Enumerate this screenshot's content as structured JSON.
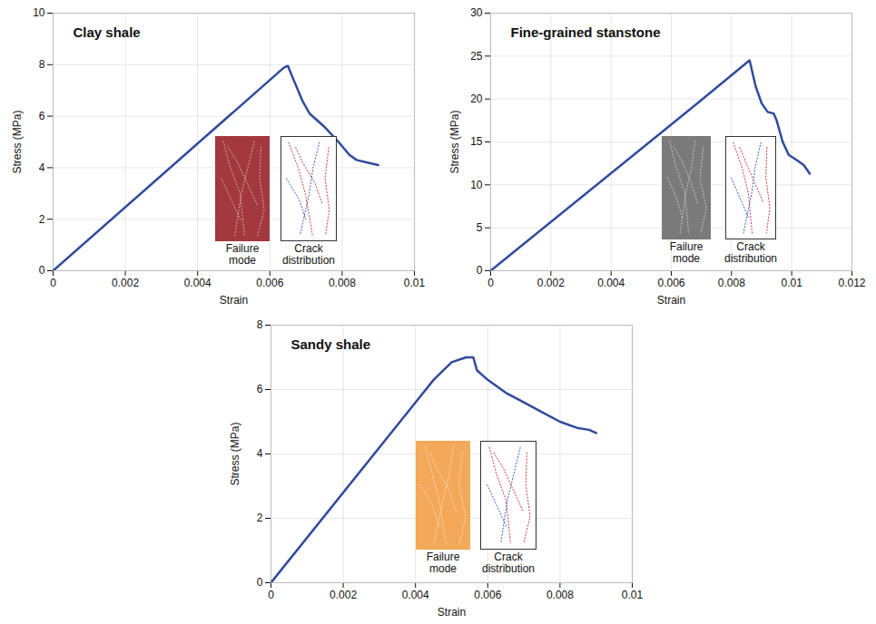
{
  "chart_data": [
    {
      "type": "line",
      "title": "Clay shale",
      "x_label": "Strain",
      "y_label": "Stress (MPa)",
      "x": [
        0,
        0.0064,
        0.0065,
        0.0066,
        0.0069,
        0.0071,
        0.0075,
        0.0079,
        0.0082,
        0.0084,
        0.0087,
        0.009
      ],
      "values": [
        0,
        7.9,
        7.95,
        7.6,
        6.6,
        6.1,
        5.6,
        5.0,
        4.5,
        4.3,
        4.2,
        4.1
      ],
      "color": "#2f4b9b",
      "xlim": [
        0,
        0.01
      ],
      "xticks": [
        0,
        0.002,
        0.004,
        0.006,
        0.008,
        0.01
      ],
      "ylim": [
        0,
        10
      ],
      "yticks": [
        0,
        2,
        4,
        6,
        8,
        10
      ],
      "grid": true,
      "annotations": [
        "Failure mode",
        "Crack distribution"
      ]
    },
    {
      "type": "line",
      "title": "Fine-grained stanstone",
      "x_label": "Strain",
      "y_label": "Stress (MPa)",
      "x": [
        0,
        0.0069,
        0.0086,
        0.0088,
        0.009,
        0.0092,
        0.0094,
        0.0095,
        0.0097,
        0.0099,
        0.0102,
        0.0104,
        0.0106
      ],
      "values": [
        0,
        19.6,
        24.5,
        21.5,
        19.5,
        18.5,
        18.3,
        17.5,
        15.0,
        13.5,
        12.8,
        12.3,
        11.3
      ],
      "color": "#2f4b9b",
      "xlim": [
        0,
        0.012
      ],
      "xticks": [
        0,
        0.002,
        0.004,
        0.006,
        0.008,
        0.01,
        0.012
      ],
      "ylim": [
        0,
        30
      ],
      "yticks": [
        0,
        5,
        10,
        15,
        20,
        25,
        30
      ],
      "grid": true,
      "annotations": [
        "Failure mode",
        "Crack distribution"
      ]
    },
    {
      "type": "line",
      "title": "Sandy shale",
      "x_label": "Strain",
      "y_label": "Stress (MPa)",
      "x": [
        0,
        0.004,
        0.0045,
        0.005,
        0.0054,
        0.0056,
        0.0057,
        0.006,
        0.0065,
        0.007,
        0.0075,
        0.008,
        0.0085,
        0.0088,
        0.009
      ],
      "values": [
        0,
        5.6,
        6.3,
        6.85,
        7.0,
        7.0,
        6.6,
        6.3,
        5.9,
        5.6,
        5.3,
        5.0,
        4.8,
        4.75,
        4.65
      ],
      "color": "#2f4b9b",
      "xlim": [
        0,
        0.01
      ],
      "xticks": [
        0,
        0.002,
        0.004,
        0.006,
        0.008,
        0.01
      ],
      "ylim": [
        0,
        8
      ],
      "yticks": [
        0,
        2,
        4,
        6,
        8
      ],
      "grid": true,
      "annotations": [
        "Failure mode",
        "Crack distribution"
      ]
    }
  ]
}
